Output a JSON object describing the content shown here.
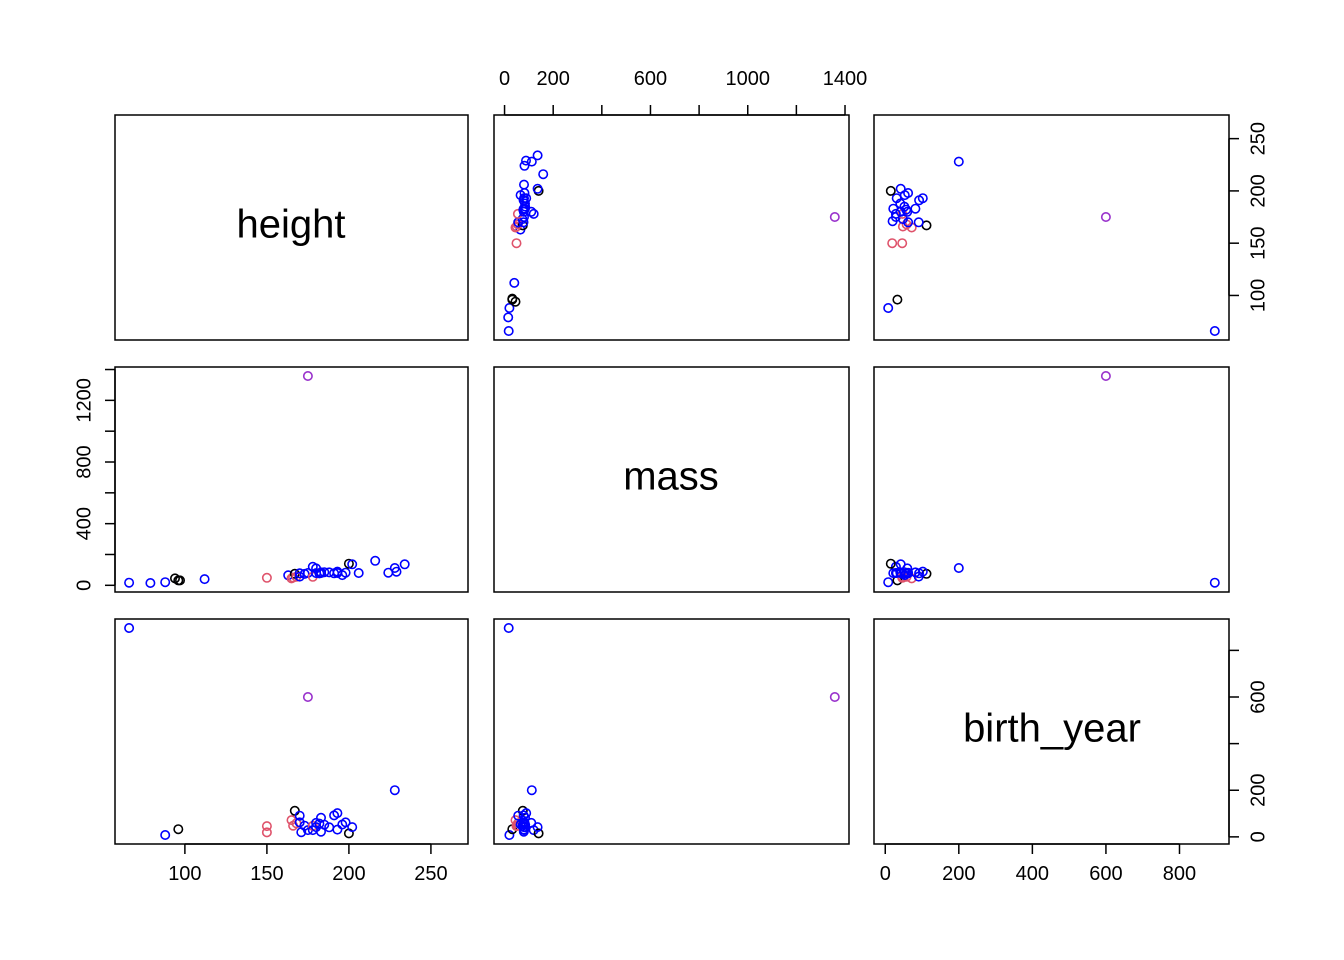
{
  "chart_data": {
    "type": "scatter",
    "kind": "scatterplot-matrix",
    "title": "",
    "variables": [
      "height",
      "mass",
      "birth_year"
    ],
    "ranges": {
      "height": [
        66,
        264
      ],
      "mass": [
        15,
        1358
      ],
      "birth_year": [
        8,
        896
      ]
    },
    "ticks": {
      "height": [
        100,
        150,
        200,
        250
      ],
      "mass": [
        0,
        200,
        400,
        600,
        800,
        1000,
        1200,
        1400
      ],
      "birth_year": [
        0,
        200,
        400,
        600,
        800
      ]
    },
    "tick_labels": {
      "height_bottom": [
        "100",
        "150",
        "200",
        "250"
      ],
      "mass_top": [
        "0",
        "200",
        "600",
        "1000",
        "1400"
      ],
      "mass_left": [
        "0",
        "400",
        "800",
        "1200"
      ],
      "birth_year_bottom": [
        "0",
        "200",
        "400",
        "600",
        "800"
      ],
      "height_right": [
        "100",
        "150",
        "200",
        "250"
      ],
      "birth_year_right": [
        "0",
        "200",
        "600"
      ]
    },
    "grid": false,
    "legend": "none",
    "colors": {
      "black": "#000000",
      "red": "#DF536B",
      "blue": "#0000FF",
      "purple": "#9932CC"
    },
    "points": [
      {
        "height": 66,
        "mass": 17,
        "birth_year": 896,
        "color": "blue"
      },
      {
        "height": 79,
        "mass": 15,
        "color": "blue"
      },
      {
        "height": 88,
        "mass": 20,
        "birth_year": 8,
        "color": "blue"
      },
      {
        "height": 94,
        "mass": 45,
        "color": "black"
      },
      {
        "height": 96,
        "mass": 32,
        "birth_year": 33,
        "color": "black"
      },
      {
        "height": 97,
        "mass": 32,
        "color": "black"
      },
      {
        "height": 112,
        "mass": 40,
        "color": "blue"
      },
      {
        "height": 150,
        "mass": 49,
        "birth_year": 46,
        "color": "red"
      },
      {
        "height": 150,
        "birth_year": 19,
        "color": "red"
      },
      {
        "height": 163,
        "mass": 65,
        "color": "blue"
      },
      {
        "height": 165,
        "mass": 45,
        "birth_year": 72,
        "color": "red"
      },
      {
        "height": 166,
        "mass": 50,
        "birth_year": 48,
        "color": "red"
      },
      {
        "height": 167,
        "mass": 75,
        "birth_year": 112,
        "color": "black"
      },
      {
        "height": 168,
        "mass": 55,
        "birth_year": 58,
        "color": "red"
      },
      {
        "height": 170,
        "mass": 78,
        "birth_year": 62,
        "color": "blue"
      },
      {
        "height": 170,
        "mass": 56.2,
        "birth_year": 91,
        "color": "blue"
      },
      {
        "height": 171,
        "birth_year": 20,
        "color": "blue"
      },
      {
        "height": 173,
        "mass": 74,
        "birth_year": 48,
        "color": "blue"
      },
      {
        "height": 175,
        "mass": 1358,
        "birth_year": 600,
        "color": "purple"
      },
      {
        "height": 175,
        "mass": 80,
        "birth_year": 29,
        "color": "blue"
      },
      {
        "height": 178,
        "mass": 55,
        "birth_year": 47,
        "color": "red"
      },
      {
        "height": 178,
        "mass": 120,
        "birth_year": 29,
        "color": "blue"
      },
      {
        "height": 180,
        "mass": 110,
        "birth_year": 60,
        "color": "blue"
      },
      {
        "height": 180,
        "mass": 79,
        "birth_year": 41.9,
        "color": "blue"
      },
      {
        "height": 182,
        "mass": 77,
        "birth_year": 57,
        "color": "blue"
      },
      {
        "height": 183,
        "mass": 84,
        "birth_year": 82,
        "color": "blue"
      },
      {
        "height": 183,
        "mass": 79,
        "birth_year": 22,
        "color": "blue"
      },
      {
        "height": 185,
        "mass": 85,
        "birth_year": 52,
        "color": "blue"
      },
      {
        "height": 188,
        "mass": 84,
        "birth_year": 41,
        "color": "blue"
      },
      {
        "height": 191,
        "mass": 78.2,
        "birth_year": 92,
        "color": "blue"
      },
      {
        "height": 193,
        "mass": 89,
        "birth_year": 102,
        "color": "blue"
      },
      {
        "height": 193,
        "mass": 80,
        "birth_year": 31,
        "color": "blue"
      },
      {
        "height": 196,
        "mass": 66,
        "birth_year": 53,
        "color": "blue"
      },
      {
        "height": 198,
        "mass": 82,
        "birth_year": 62,
        "color": "blue"
      },
      {
        "height": 200,
        "mass": 140,
        "birth_year": 15,
        "color": "black"
      },
      {
        "height": 202,
        "mass": 136,
        "birth_year": 41.9,
        "color": "blue"
      },
      {
        "height": 206,
        "mass": 80,
        "color": "blue"
      },
      {
        "height": 216,
        "mass": 159,
        "color": "blue"
      },
      {
        "height": 224,
        "mass": 82,
        "color": "blue"
      },
      {
        "height": 228,
        "mass": 112,
        "birth_year": 200,
        "color": "blue"
      },
      {
        "height": 229,
        "mass": 88,
        "color": "blue"
      },
      {
        "height": 234,
        "mass": 136,
        "color": "blue"
      }
    ]
  }
}
